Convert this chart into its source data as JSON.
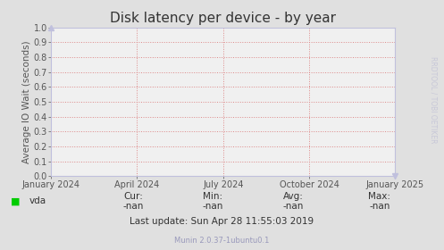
{
  "title": "Disk latency per device - by year",
  "ylabel": "Average IO Wait (seconds)",
  "background_color": "#e0e0e0",
  "plot_bg_color": "#f0f0f0",
  "plot_border_color": "#c0c0dd",
  "grid_color": "#dd8888",
  "grid_style": ":",
  "ylim": [
    0.0,
    1.0
  ],
  "yticks": [
    0.0,
    0.1,
    0.2,
    0.3,
    0.4,
    0.5,
    0.6,
    0.7,
    0.8,
    0.9,
    1.0
  ],
  "xtick_labels": [
    "January 2024",
    "April 2024",
    "July 2024",
    "October 2024",
    "January 2025"
  ],
  "xtick_positions": [
    0.0,
    0.25,
    0.5,
    0.75,
    1.0
  ],
  "legend_label": "vda",
  "legend_color": "#00cc00",
  "cur_label": "Cur:",
  "cur_value": "-nan",
  "min_label": "Min:",
  "min_value": "-nan",
  "avg_label": "Avg:",
  "avg_value": "-nan",
  "max_label": "Max:",
  "max_value": "-nan",
  "last_update": "Last update: Sun Apr 28 11:55:03 2019",
  "footer": "Munin 2.0.37-1ubuntu0.1",
  "rrdtool_text": "RRDTOOL / TOBI OETIKER",
  "title_fontsize": 11,
  "axis_label_fontsize": 7.5,
  "tick_fontsize": 7,
  "stats_fontsize": 7.5,
  "footer_fontsize": 6,
  "watermark_color": "#c8c8d8",
  "text_color": "#555555",
  "footer_color": "#9999bb"
}
